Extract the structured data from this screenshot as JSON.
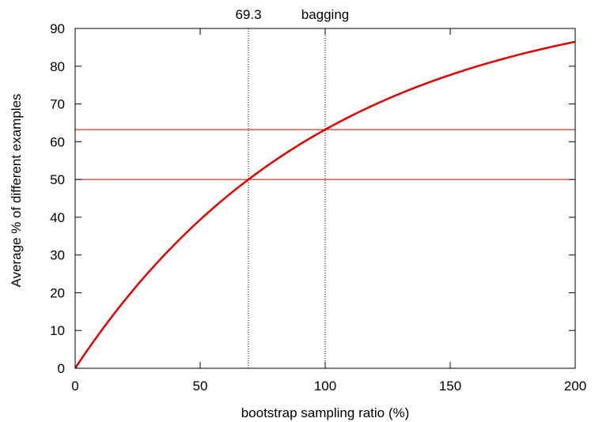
{
  "chart_data": {
    "type": "line",
    "title": "",
    "xlabel": "bootstrap sampling ratio (%)",
    "ylabel": "Average % of different examples",
    "xlim": [
      0,
      200
    ],
    "ylim": [
      0,
      90
    ],
    "x_ticks": [
      0,
      50,
      100,
      150,
      200
    ],
    "y_ticks": [
      0,
      10,
      20,
      30,
      40,
      50,
      60,
      70,
      80,
      90
    ],
    "grid": false,
    "legend": "none",
    "series": [
      {
        "color": "#e00000",
        "function": "100 * (1 - exp(-x / 100))",
        "x": [
          0,
          10,
          20,
          30,
          40,
          50,
          60,
          69.3,
          80,
          90,
          100,
          110,
          120,
          130,
          140,
          150,
          160,
          170,
          180,
          190,
          200
        ],
        "y": [
          0,
          9.5,
          18.1,
          25.9,
          33.0,
          39.3,
          45.1,
          50.0,
          55.1,
          59.3,
          63.2,
          66.7,
          69.9,
          72.7,
          75.3,
          77.7,
          79.8,
          81.7,
          83.5,
          85.0,
          86.5
        ]
      }
    ],
    "reference_lines": {
      "horizontal": [
        {
          "y": 50,
          "color": "#c00000"
        },
        {
          "y": 63.2,
          "color": "#c00000"
        }
      ],
      "vertical": [
        {
          "x": 69.3,
          "label": "69.3",
          "style": "dotted"
        },
        {
          "x": 100,
          "label": "bagging",
          "style": "dotted"
        }
      ]
    }
  }
}
